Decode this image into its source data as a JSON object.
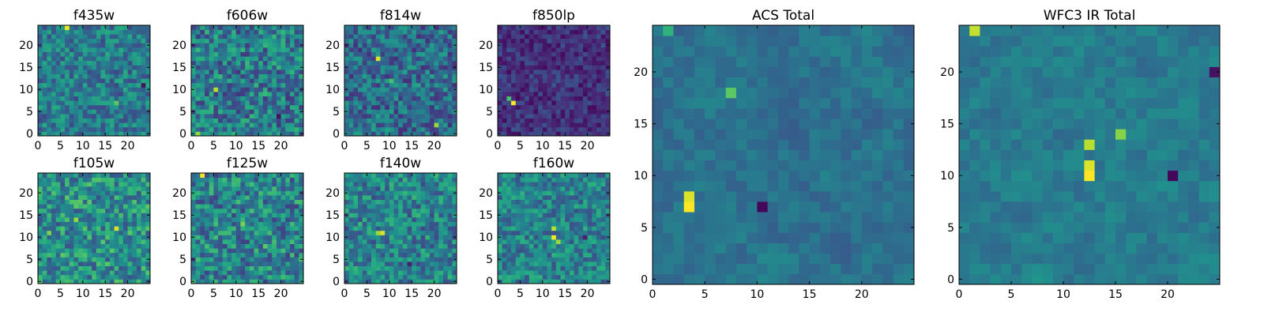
{
  "figure_title": "",
  "chart_data": [
    {
      "type": "heatmap",
      "title": "f435w",
      "xlabel": "",
      "ylabel": "",
      "xlim": [
        0,
        25
      ],
      "ylim": [
        0,
        25
      ],
      "grid_size": 25,
      "x_ticks": [
        0,
        5,
        10,
        15,
        20
      ],
      "y_ticks": [
        0,
        5,
        10,
        15,
        20
      ],
      "colormap": "viridis",
      "grid": false,
      "legend": "none",
      "mean_level": 0.42,
      "spread": 0.2,
      "hotspots": [
        {
          "x": 6,
          "y": 24,
          "value": 1.0
        },
        {
          "x": 17,
          "y": 7,
          "value": 0.75
        },
        {
          "x": 23,
          "y": 11,
          "value": 0.05
        }
      ]
    },
    {
      "type": "heatmap",
      "title": "f606w",
      "xlabel": "",
      "ylabel": "",
      "xlim": [
        0,
        25
      ],
      "ylim": [
        0,
        25
      ],
      "grid_size": 25,
      "x_ticks": [
        0,
        5,
        10,
        15,
        20
      ],
      "y_ticks": [
        0,
        5,
        10,
        15,
        20
      ],
      "colormap": "viridis",
      "grid": false,
      "legend": "none",
      "mean_level": 0.42,
      "spread": 0.25,
      "hotspots": [
        {
          "x": 5,
          "y": 10,
          "value": 0.9
        },
        {
          "x": 1,
          "y": 0,
          "value": 0.85
        },
        {
          "x": 19,
          "y": 4,
          "value": 0.05
        }
      ]
    },
    {
      "type": "heatmap",
      "title": "f814w",
      "xlabel": "",
      "ylabel": "",
      "xlim": [
        0,
        25
      ],
      "ylim": [
        0,
        25
      ],
      "grid_size": 25,
      "x_ticks": [
        0,
        5,
        10,
        15,
        20
      ],
      "y_ticks": [
        0,
        5,
        10,
        15,
        20
      ],
      "colormap": "viridis",
      "grid": false,
      "legend": "none",
      "mean_level": 0.36,
      "spread": 0.22,
      "hotspots": [
        {
          "x": 7,
          "y": 17,
          "value": 0.95
        },
        {
          "x": 20,
          "y": 2,
          "value": 0.85
        },
        {
          "x": 10,
          "y": 12,
          "value": 0.7
        }
      ]
    },
    {
      "type": "heatmap",
      "title": "f850lp",
      "xlabel": "",
      "ylabel": "",
      "xlim": [
        0,
        25
      ],
      "ylim": [
        0,
        25
      ],
      "grid_size": 25,
      "x_ticks": [
        0,
        5,
        10,
        15,
        20
      ],
      "y_ticks": [
        0,
        5,
        10,
        15,
        20
      ],
      "colormap": "viridis",
      "grid": false,
      "legend": "none",
      "mean_level": 0.15,
      "spread": 0.12,
      "hotspots": [
        {
          "x": 3,
          "y": 7,
          "value": 1.0
        },
        {
          "x": 2,
          "y": 8,
          "value": 0.7
        }
      ]
    },
    {
      "type": "heatmap",
      "title": "f105w",
      "xlabel": "",
      "ylabel": "",
      "xlim": [
        0,
        25
      ],
      "ylim": [
        0,
        25
      ],
      "grid_size": 25,
      "x_ticks": [
        0,
        5,
        10,
        15,
        20
      ],
      "y_ticks": [
        0,
        5,
        10,
        15,
        20
      ],
      "colormap": "viridis",
      "grid": false,
      "legend": "none",
      "mean_level": 0.5,
      "spread": 0.25,
      "hotspots": [
        {
          "x": 17,
          "y": 12,
          "value": 0.95
        },
        {
          "x": 8,
          "y": 14,
          "value": 0.85
        },
        {
          "x": 2,
          "y": 11,
          "value": 0.8
        }
      ]
    },
    {
      "type": "heatmap",
      "title": "f125w",
      "xlabel": "",
      "ylabel": "",
      "xlim": [
        0,
        25
      ],
      "ylim": [
        0,
        25
      ],
      "grid_size": 25,
      "x_ticks": [
        0,
        5,
        10,
        15,
        20
      ],
      "y_ticks": [
        0,
        5,
        10,
        15,
        20
      ],
      "colormap": "viridis",
      "grid": false,
      "legend": "none",
      "mean_level": 0.45,
      "spread": 0.25,
      "hotspots": [
        {
          "x": 2,
          "y": 24,
          "value": 1.0
        },
        {
          "x": 11,
          "y": 13,
          "value": 0.8
        },
        {
          "x": 16,
          "y": 8,
          "value": 0.75
        }
      ]
    },
    {
      "type": "heatmap",
      "title": "f140w",
      "xlabel": "",
      "ylabel": "",
      "xlim": [
        0,
        25
      ],
      "ylim": [
        0,
        25
      ],
      "grid_size": 25,
      "x_ticks": [
        0,
        5,
        10,
        15,
        20
      ],
      "y_ticks": [
        0,
        5,
        10,
        15,
        20
      ],
      "colormap": "viridis",
      "grid": false,
      "legend": "none",
      "mean_level": 0.45,
      "spread": 0.22,
      "hotspots": [
        {
          "x": 8,
          "y": 11,
          "value": 0.95
        },
        {
          "x": 7,
          "y": 11,
          "value": 0.85
        },
        {
          "x": 14,
          "y": 4,
          "value": 0.1
        }
      ]
    },
    {
      "type": "heatmap",
      "title": "f160w",
      "xlabel": "",
      "ylabel": "",
      "xlim": [
        0,
        25
      ],
      "ylim": [
        0,
        25
      ],
      "grid_size": 25,
      "x_ticks": [
        0,
        5,
        10,
        15,
        20
      ],
      "y_ticks": [
        0,
        5,
        10,
        15,
        20
      ],
      "colormap": "viridis",
      "grid": false,
      "legend": "none",
      "mean_level": 0.45,
      "spread": 0.2,
      "hotspots": [
        {
          "x": 12,
          "y": 10,
          "value": 1.0
        },
        {
          "x": 12,
          "y": 12,
          "value": 0.9
        },
        {
          "x": 13,
          "y": 9,
          "value": 0.85
        },
        {
          "x": 19,
          "y": 10,
          "value": 0.1
        }
      ]
    },
    {
      "type": "heatmap",
      "title": "ACS Total",
      "xlabel": "",
      "ylabel": "",
      "xlim": [
        0,
        25
      ],
      "ylim": [
        0,
        25
      ],
      "grid_size": 25,
      "x_ticks": [
        0,
        5,
        10,
        15,
        20
      ],
      "y_ticks": [
        0,
        5,
        10,
        15,
        20
      ],
      "colormap": "viridis",
      "grid": false,
      "legend": "none",
      "mean_level": 0.38,
      "spread": 0.12,
      "hotspots": [
        {
          "x": 3,
          "y": 7,
          "value": 1.0
        },
        {
          "x": 3,
          "y": 8,
          "value": 0.95
        },
        {
          "x": 7,
          "y": 18,
          "value": 0.75
        },
        {
          "x": 1,
          "y": 24,
          "value": 0.65
        },
        {
          "x": 10,
          "y": 7,
          "value": 0.02
        }
      ]
    },
    {
      "type": "heatmap",
      "title": "WFC3 IR Total",
      "xlabel": "",
      "ylabel": "",
      "xlim": [
        0,
        25
      ],
      "ylim": [
        0,
        25
      ],
      "grid_size": 25,
      "x_ticks": [
        0,
        5,
        10,
        15,
        20
      ],
      "y_ticks": [
        0,
        5,
        10,
        15,
        20
      ],
      "colormap": "viridis",
      "grid": false,
      "legend": "none",
      "mean_level": 0.42,
      "spread": 0.12,
      "hotspots": [
        {
          "x": 1,
          "y": 24,
          "value": 0.92
        },
        {
          "x": 12,
          "y": 13,
          "value": 0.9
        },
        {
          "x": 12,
          "y": 10,
          "value": 1.0
        },
        {
          "x": 12,
          "y": 11,
          "value": 0.95
        },
        {
          "x": 15,
          "y": 14,
          "value": 0.82
        },
        {
          "x": 20,
          "y": 10,
          "value": 0.02
        },
        {
          "x": 24,
          "y": 20,
          "value": 0.05
        }
      ]
    }
  ]
}
